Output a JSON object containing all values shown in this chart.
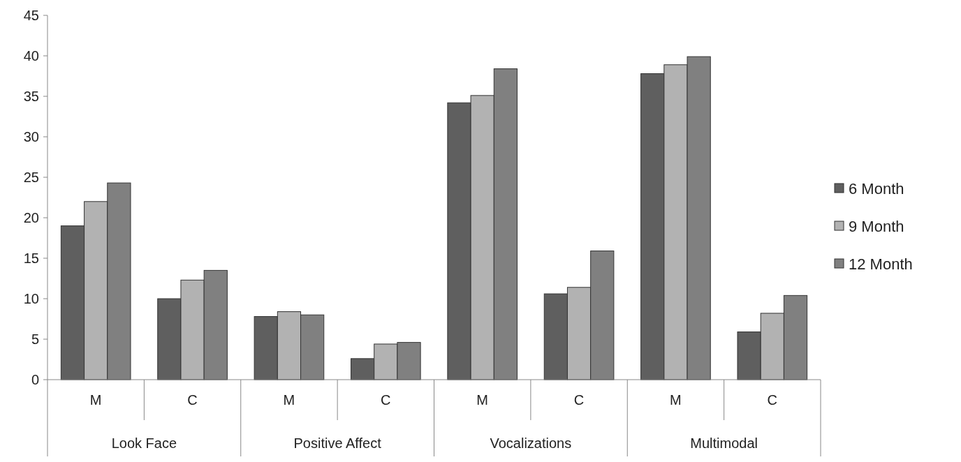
{
  "chart_data": {
    "type": "bar",
    "categories": [
      "M",
      "C",
      "M",
      "C",
      "M",
      "C",
      "M",
      "C"
    ],
    "series": [
      {
        "name": "6 Month",
        "color": "#5f5f5f",
        "values": [
          19,
          10,
          7.8,
          2.6,
          34.2,
          10.6,
          37.8,
          5.9
        ]
      },
      {
        "name": "9 Month",
        "color": "#b2b2b2",
        "values": [
          22,
          12.3,
          8.4,
          4.4,
          35.1,
          11.4,
          38.9,
          8.2
        ]
      },
      {
        "name": "12 Month",
        "color": "#808080",
        "values": [
          24.3,
          13.5,
          8,
          4.6,
          38.4,
          15.9,
          39.9,
          10.4
        ]
      }
    ],
    "annotations": [
      "Look Face",
      "Positive Affect",
      "Vocalizations",
      "Multimodal"
    ],
    "ylim": [
      0,
      45
    ],
    "yticks": [
      0,
      5,
      10,
      15,
      20,
      25,
      30,
      35,
      40,
      45
    ],
    "grid": false,
    "legend": "right"
  }
}
